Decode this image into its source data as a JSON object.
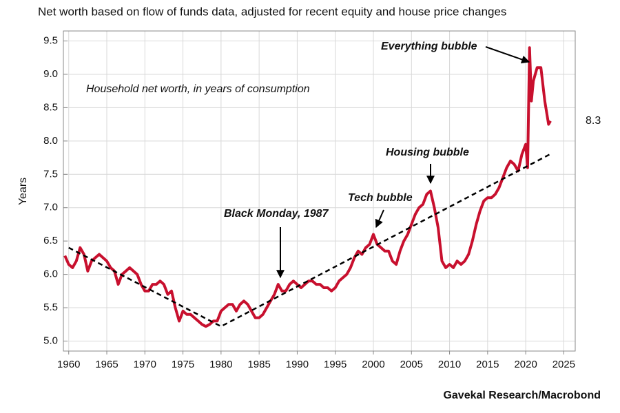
{
  "chart_data": {
    "type": "line",
    "title": "Net worth based on flow of funds data, adjusted for recent equity and house price changes",
    "y_label": "Years",
    "source": "Gavekal Research/Macrobond",
    "xlim": [
      1959.3,
      2026.5
    ],
    "ylim": [
      4.85,
      9.65
    ],
    "xticks": [
      1960,
      1965,
      1970,
      1975,
      1980,
      1985,
      1990,
      1995,
      2000,
      2005,
      2010,
      2015,
      2020,
      2025
    ],
    "yticks": [
      {
        "value": 5,
        "label": "5.0"
      },
      5.5,
      {
        "value": 6,
        "label": "6.0"
      },
      6.5,
      {
        "value": 7,
        "label": "7.0"
      },
      7.5,
      {
        "value": 8,
        "label": "8.0"
      },
      8.5,
      {
        "value": 9,
        "label": "9.0"
      },
      9.5
    ],
    "grid": true,
    "series": [
      {
        "name": "Household net worth, in years of consumption",
        "color": "#c8102e",
        "x": [
          1959.5,
          1960,
          1960.5,
          1961,
          1961.5,
          1962,
          1962.5,
          1963,
          1963.5,
          1964,
          1964.5,
          1965,
          1965.5,
          1966,
          1966.5,
          1967,
          1967.5,
          1968,
          1968.5,
          1969,
          1969.5,
          1970,
          1970.5,
          1971,
          1971.5,
          1972,
          1972.5,
          1973,
          1973.5,
          1974,
          1974.5,
          1975,
          1975.5,
          1976,
          1976.5,
          1977,
          1977.5,
          1978,
          1978.5,
          1979,
          1979.5,
          1980,
          1980.5,
          1981,
          1981.5,
          1982,
          1982.5,
          1983,
          1983.5,
          1984,
          1984.5,
          1985,
          1985.5,
          1986,
          1986.5,
          1987,
          1987.5,
          1988,
          1988.5,
          1989,
          1989.5,
          1990,
          1990.5,
          1991,
          1991.5,
          1992,
          1992.5,
          1993,
          1993.5,
          1994,
          1994.5,
          1995,
          1995.5,
          1996,
          1996.5,
          1997,
          1997.5,
          1998,
          1998.5,
          1999,
          1999.5,
          2000,
          2000.5,
          2001,
          2001.5,
          2002,
          2002.5,
          2003,
          2003.5,
          2004,
          2004.5,
          2005,
          2005.5,
          2006,
          2006.5,
          2007,
          2007.5,
          2008,
          2008.5,
          2009,
          2009.5,
          2010,
          2010.5,
          2011,
          2011.5,
          2012,
          2012.5,
          2013,
          2013.5,
          2014,
          2014.5,
          2015,
          2015.5,
          2016,
          2016.5,
          2017,
          2017.5,
          2018,
          2018.5,
          2019,
          2019.5,
          2020,
          2020.25,
          2020.5,
          2020.75,
          2021,
          2021.5,
          2022,
          2022.5,
          2023,
          2023.25
        ],
        "values": [
          6.28,
          6.15,
          6.1,
          6.2,
          6.4,
          6.3,
          6.05,
          6.2,
          6.25,
          6.3,
          6.25,
          6.2,
          6.1,
          6.05,
          5.85,
          6.0,
          6.05,
          6.1,
          6.05,
          6.0,
          5.85,
          5.75,
          5.75,
          5.85,
          5.85,
          5.9,
          5.85,
          5.7,
          5.75,
          5.5,
          5.3,
          5.45,
          5.4,
          5.4,
          5.35,
          5.3,
          5.25,
          5.22,
          5.25,
          5.3,
          5.3,
          5.45,
          5.5,
          5.55,
          5.55,
          5.45,
          5.55,
          5.6,
          5.55,
          5.45,
          5.35,
          5.35,
          5.4,
          5.5,
          5.6,
          5.7,
          5.85,
          5.75,
          5.75,
          5.85,
          5.9,
          5.85,
          5.8,
          5.85,
          5.9,
          5.9,
          5.85,
          5.85,
          5.8,
          5.8,
          5.75,
          5.8,
          5.9,
          5.95,
          6.0,
          6.1,
          6.25,
          6.35,
          6.3,
          6.4,
          6.45,
          6.6,
          6.45,
          6.4,
          6.35,
          6.35,
          6.2,
          6.15,
          6.35,
          6.5,
          6.6,
          6.75,
          6.9,
          7.0,
          7.05,
          7.2,
          7.25,
          7.0,
          6.7,
          6.2,
          6.1,
          6.15,
          6.1,
          6.2,
          6.15,
          6.2,
          6.3,
          6.5,
          6.75,
          6.95,
          7.1,
          7.15,
          7.15,
          7.2,
          7.3,
          7.45,
          7.6,
          7.7,
          7.65,
          7.55,
          7.8,
          7.95,
          7.6,
          9.4,
          8.6,
          8.9,
          9.1,
          9.1,
          8.6,
          8.25,
          8.3
        ]
      },
      {
        "color": "#000000",
        "dashed": true,
        "x": [
          1960,
          1980,
          2023.5
        ],
        "values": [
          6.4,
          5.22,
          7.82
        ]
      }
    ],
    "end_label": {
      "value": 8.3,
      "label": "8.3"
    },
    "annotations": [
      "Everything bubble",
      "Housing bubble",
      "Tech bubble",
      "Black Monday, 1987"
    ]
  }
}
